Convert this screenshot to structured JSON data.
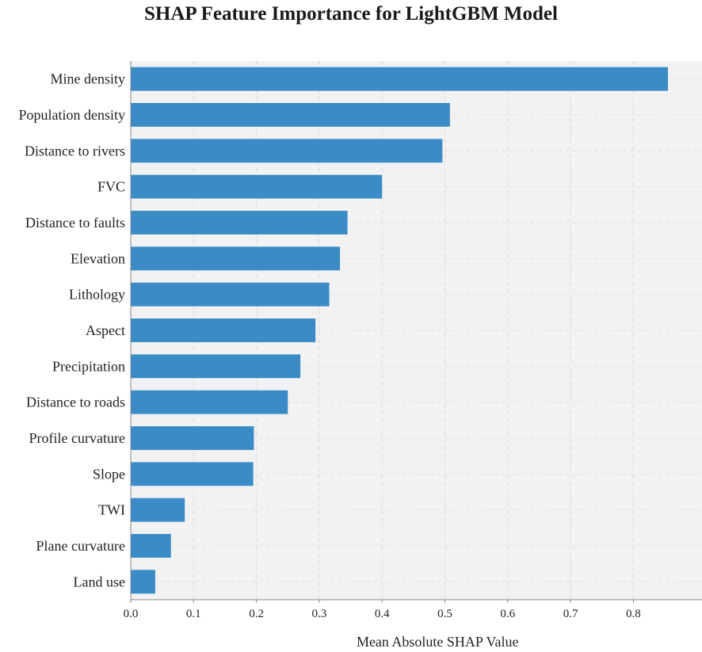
{
  "chart_data": {
    "type": "bar",
    "orientation": "horizontal",
    "title": "SHAP Feature Importance for LightGBM Model",
    "xlabel": "Mean Absolute SHAP Value",
    "ylabel": "",
    "xlim": [
      0,
      0.88
    ],
    "xticks": [
      "0.0",
      "0.1",
      "0.2",
      "0.3",
      "0.4",
      "0.5",
      "0.6",
      "0.7",
      "0.8"
    ],
    "grid": true,
    "bar_color": "#3b8cc6",
    "background_color": "#f2f2f2",
    "categories": [
      "Mine density",
      "Population density",
      "Distance to rivers",
      "FVC",
      "Distance to faults",
      "Elevation",
      "Lithology",
      "Aspect",
      "Precipitation",
      "Distance to roads",
      "Profile curvature",
      "Slope",
      "TWI",
      "Plane curvature",
      "Land use"
    ],
    "values": [
      0.855,
      0.508,
      0.496,
      0.4,
      0.345,
      0.333,
      0.316,
      0.294,
      0.27,
      0.25,
      0.196,
      0.195,
      0.086,
      0.064,
      0.039
    ]
  }
}
